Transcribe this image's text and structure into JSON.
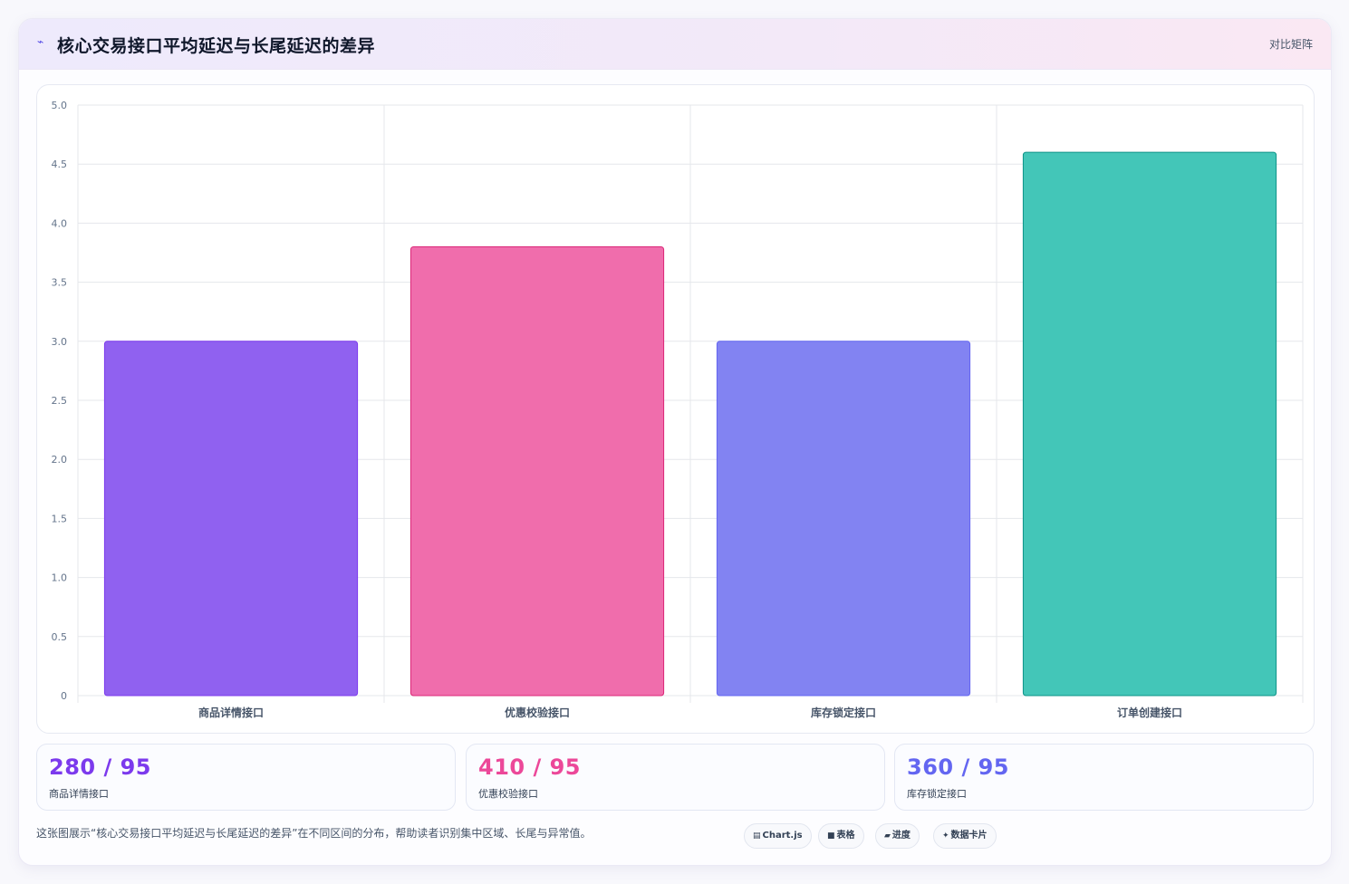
{
  "header": {
    "icon": "line-chart-icon",
    "title": "核心交易接口平均延迟与长尾延迟的差异",
    "action_label": "对比矩阵"
  },
  "chart_data": {
    "type": "bar",
    "categories": [
      "商品详情接口",
      "优惠校验接口",
      "库存锁定接口",
      "订单创建接口"
    ],
    "values": [
      3.0,
      3.8,
      3.0,
      4.6
    ],
    "ylim": [
      0,
      5.0
    ],
    "yticks": [
      "0",
      "0.5",
      "1.0",
      "1.5",
      "2.0",
      "2.5",
      "3.0",
      "3.5",
      "4.0",
      "4.5",
      "5.0"
    ],
    "colors": [
      "#9061f0",
      "#f06dac",
      "#8283f2",
      "#43c6b8"
    ],
    "border_colors": [
      "#7c3aed",
      "#db2777",
      "#6366f1",
      "#0d9488"
    ],
    "grid": true,
    "legend": "none"
  },
  "stats": [
    {
      "value": "280 / 95",
      "label": "商品详情接口",
      "color": "#7c3aed"
    },
    {
      "value": "410 / 95",
      "label": "优惠校验接口",
      "color": "#ec4899"
    },
    {
      "value": "360 / 95",
      "label": "库存锁定接口",
      "color": "#6366f1"
    }
  ],
  "caption": "这张图展示“核心交易接口平均延迟与长尾延迟的差异”在不同区间的分布，帮助读者识别集中区域、长尾与异常值。",
  "tags": [
    {
      "icon": "chart-box-icon",
      "glyph": "▤",
      "label": "Chart.js"
    },
    {
      "icon": "table-icon",
      "glyph": "■",
      "label": "表格"
    },
    {
      "icon": "progress-icon",
      "glyph": "▰",
      "label": "进度"
    },
    {
      "icon": "sparkle-icon",
      "glyph": "✦",
      "label": "数据卡片"
    }
  ]
}
